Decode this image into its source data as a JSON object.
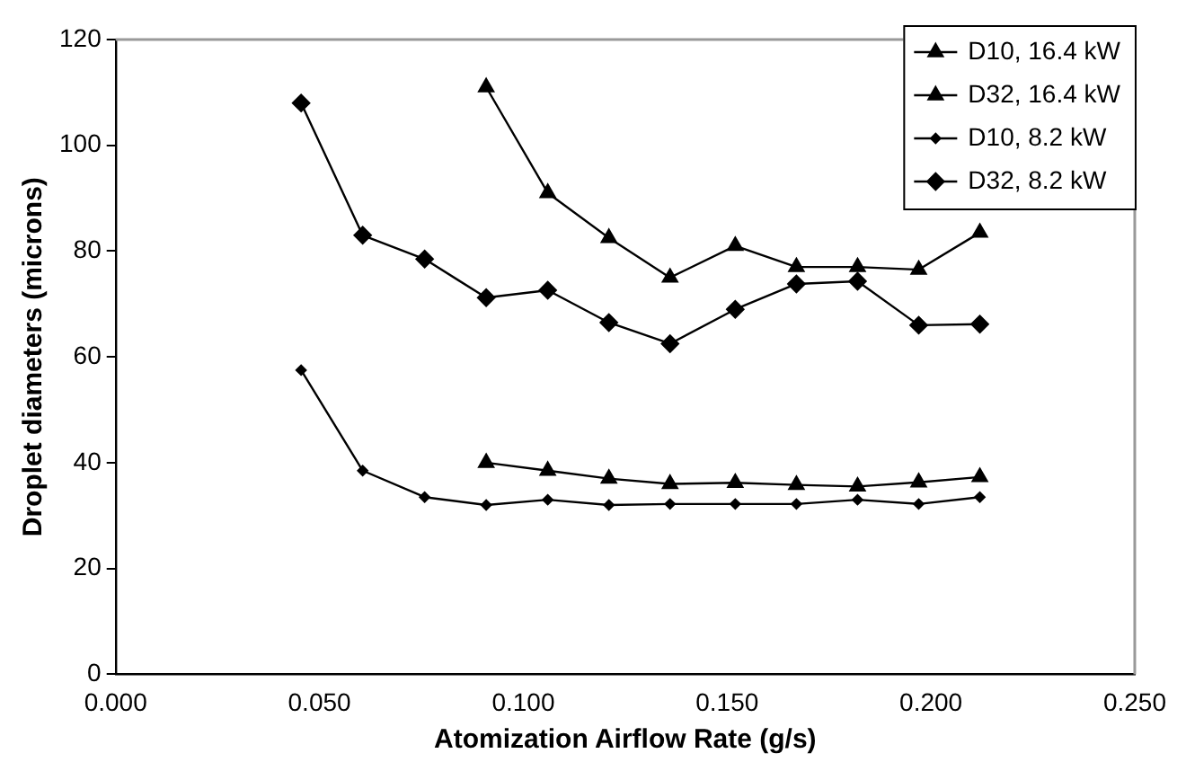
{
  "chart_data": {
    "type": "line",
    "xlabel": "Atomization Airflow Rate (g/s)",
    "ylabel": "Droplet diameters (microns)",
    "xlim": [
      0,
      0.25
    ],
    "xticks": [
      {
        "value": 0,
        "label": "0.000"
      },
      {
        "value": 0.05,
        "label": "0.050"
      },
      {
        "value": 0.1,
        "label": "0.100"
      },
      {
        "value": 0.15,
        "label": "0.150"
      },
      {
        "value": 0.2,
        "label": "0.200"
      },
      {
        "value": 0.25,
        "label": "0.250"
      }
    ],
    "ylim": [
      0,
      120
    ],
    "yticks": [
      0,
      20,
      40,
      60,
      80,
      100,
      120
    ],
    "grid": false,
    "legend": "top right",
    "line_style": "solid",
    "x": [
      0.0455,
      0.0606,
      0.0758,
      0.0909,
      0.106,
      0.121,
      0.136,
      0.152,
      0.167,
      0.182,
      0.197,
      0.212
    ],
    "series": [
      {
        "name": "D10, 16.4 kW",
        "color": "#000000",
        "marker": "triangle",
        "values": [
          null,
          null,
          null,
          40,
          38.5,
          37,
          36,
          36.2,
          35.8,
          35.5,
          36.3,
          37.3
        ]
      },
      {
        "name": "D32, 16.4 kW",
        "color": "#000000",
        "marker": "triangle",
        "values": [
          null,
          null,
          null,
          111,
          91,
          82.5,
          75,
          81,
          77,
          77,
          76.5,
          83.5
        ]
      },
      {
        "name": "D10, 8.2 kW",
        "color": "#000000",
        "marker": "diamond",
        "values": [
          57.5,
          38.5,
          33.5,
          32,
          33,
          32,
          32.2,
          32.2,
          32.2,
          33,
          32.2,
          33.5
        ]
      },
      {
        "name": "D32, 8.2 kW",
        "color": "#000000",
        "marker": "diamond",
        "values": [
          108,
          83,
          78.5,
          71.2,
          72.6,
          66.5,
          62.5,
          69,
          73.8,
          74.3,
          66,
          66.2
        ]
      }
    ]
  }
}
